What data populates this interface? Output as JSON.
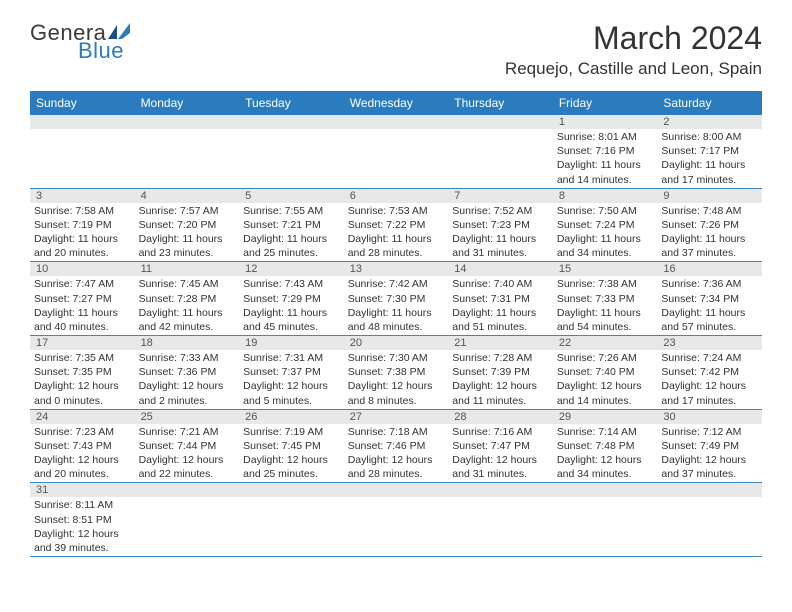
{
  "brand": {
    "part1": "Genera",
    "part2": "Blue"
  },
  "title": "March 2024",
  "location": "Requejo, Castille and Leon, Spain",
  "weekdays": [
    "Sunday",
    "Monday",
    "Tuesday",
    "Wednesday",
    "Thursday",
    "Friday",
    "Saturday"
  ],
  "colors": {
    "header_bg": "#2b7bbf",
    "row_divider": "#3a88c7",
    "daynum_bg": "#e8e8e8",
    "text": "#333333"
  },
  "weeks": [
    [
      null,
      null,
      null,
      null,
      null,
      {
        "n": "1",
        "sr": "Sunrise: 8:01 AM",
        "ss": "Sunset: 7:16 PM",
        "d1": "Daylight: 11 hours",
        "d2": "and 14 minutes."
      },
      {
        "n": "2",
        "sr": "Sunrise: 8:00 AM",
        "ss": "Sunset: 7:17 PM",
        "d1": "Daylight: 11 hours",
        "d2": "and 17 minutes."
      }
    ],
    [
      {
        "n": "3",
        "sr": "Sunrise: 7:58 AM",
        "ss": "Sunset: 7:19 PM",
        "d1": "Daylight: 11 hours",
        "d2": "and 20 minutes."
      },
      {
        "n": "4",
        "sr": "Sunrise: 7:57 AM",
        "ss": "Sunset: 7:20 PM",
        "d1": "Daylight: 11 hours",
        "d2": "and 23 minutes."
      },
      {
        "n": "5",
        "sr": "Sunrise: 7:55 AM",
        "ss": "Sunset: 7:21 PM",
        "d1": "Daylight: 11 hours",
        "d2": "and 25 minutes."
      },
      {
        "n": "6",
        "sr": "Sunrise: 7:53 AM",
        "ss": "Sunset: 7:22 PM",
        "d1": "Daylight: 11 hours",
        "d2": "and 28 minutes."
      },
      {
        "n": "7",
        "sr": "Sunrise: 7:52 AM",
        "ss": "Sunset: 7:23 PM",
        "d1": "Daylight: 11 hours",
        "d2": "and 31 minutes."
      },
      {
        "n": "8",
        "sr": "Sunrise: 7:50 AM",
        "ss": "Sunset: 7:24 PM",
        "d1": "Daylight: 11 hours",
        "d2": "and 34 minutes."
      },
      {
        "n": "9",
        "sr": "Sunrise: 7:48 AM",
        "ss": "Sunset: 7:26 PM",
        "d1": "Daylight: 11 hours",
        "d2": "and 37 minutes."
      }
    ],
    [
      {
        "n": "10",
        "sr": "Sunrise: 7:47 AM",
        "ss": "Sunset: 7:27 PM",
        "d1": "Daylight: 11 hours",
        "d2": "and 40 minutes."
      },
      {
        "n": "11",
        "sr": "Sunrise: 7:45 AM",
        "ss": "Sunset: 7:28 PM",
        "d1": "Daylight: 11 hours",
        "d2": "and 42 minutes."
      },
      {
        "n": "12",
        "sr": "Sunrise: 7:43 AM",
        "ss": "Sunset: 7:29 PM",
        "d1": "Daylight: 11 hours",
        "d2": "and 45 minutes."
      },
      {
        "n": "13",
        "sr": "Sunrise: 7:42 AM",
        "ss": "Sunset: 7:30 PM",
        "d1": "Daylight: 11 hours",
        "d2": "and 48 minutes."
      },
      {
        "n": "14",
        "sr": "Sunrise: 7:40 AM",
        "ss": "Sunset: 7:31 PM",
        "d1": "Daylight: 11 hours",
        "d2": "and 51 minutes."
      },
      {
        "n": "15",
        "sr": "Sunrise: 7:38 AM",
        "ss": "Sunset: 7:33 PM",
        "d1": "Daylight: 11 hours",
        "d2": "and 54 minutes."
      },
      {
        "n": "16",
        "sr": "Sunrise: 7:36 AM",
        "ss": "Sunset: 7:34 PM",
        "d1": "Daylight: 11 hours",
        "d2": "and 57 minutes."
      }
    ],
    [
      {
        "n": "17",
        "sr": "Sunrise: 7:35 AM",
        "ss": "Sunset: 7:35 PM",
        "d1": "Daylight: 12 hours",
        "d2": "and 0 minutes."
      },
      {
        "n": "18",
        "sr": "Sunrise: 7:33 AM",
        "ss": "Sunset: 7:36 PM",
        "d1": "Daylight: 12 hours",
        "d2": "and 2 minutes."
      },
      {
        "n": "19",
        "sr": "Sunrise: 7:31 AM",
        "ss": "Sunset: 7:37 PM",
        "d1": "Daylight: 12 hours",
        "d2": "and 5 minutes."
      },
      {
        "n": "20",
        "sr": "Sunrise: 7:30 AM",
        "ss": "Sunset: 7:38 PM",
        "d1": "Daylight: 12 hours",
        "d2": "and 8 minutes."
      },
      {
        "n": "21",
        "sr": "Sunrise: 7:28 AM",
        "ss": "Sunset: 7:39 PM",
        "d1": "Daylight: 12 hours",
        "d2": "and 11 minutes."
      },
      {
        "n": "22",
        "sr": "Sunrise: 7:26 AM",
        "ss": "Sunset: 7:40 PM",
        "d1": "Daylight: 12 hours",
        "d2": "and 14 minutes."
      },
      {
        "n": "23",
        "sr": "Sunrise: 7:24 AM",
        "ss": "Sunset: 7:42 PM",
        "d1": "Daylight: 12 hours",
        "d2": "and 17 minutes."
      }
    ],
    [
      {
        "n": "24",
        "sr": "Sunrise: 7:23 AM",
        "ss": "Sunset: 7:43 PM",
        "d1": "Daylight: 12 hours",
        "d2": "and 20 minutes."
      },
      {
        "n": "25",
        "sr": "Sunrise: 7:21 AM",
        "ss": "Sunset: 7:44 PM",
        "d1": "Daylight: 12 hours",
        "d2": "and 22 minutes."
      },
      {
        "n": "26",
        "sr": "Sunrise: 7:19 AM",
        "ss": "Sunset: 7:45 PM",
        "d1": "Daylight: 12 hours",
        "d2": "and 25 minutes."
      },
      {
        "n": "27",
        "sr": "Sunrise: 7:18 AM",
        "ss": "Sunset: 7:46 PM",
        "d1": "Daylight: 12 hours",
        "d2": "and 28 minutes."
      },
      {
        "n": "28",
        "sr": "Sunrise: 7:16 AM",
        "ss": "Sunset: 7:47 PM",
        "d1": "Daylight: 12 hours",
        "d2": "and 31 minutes."
      },
      {
        "n": "29",
        "sr": "Sunrise: 7:14 AM",
        "ss": "Sunset: 7:48 PM",
        "d1": "Daylight: 12 hours",
        "d2": "and 34 minutes."
      },
      {
        "n": "30",
        "sr": "Sunrise: 7:12 AM",
        "ss": "Sunset: 7:49 PM",
        "d1": "Daylight: 12 hours",
        "d2": "and 37 minutes."
      }
    ],
    [
      {
        "n": "31",
        "sr": "Sunrise: 8:11 AM",
        "ss": "Sunset: 8:51 PM",
        "d1": "Daylight: 12 hours",
        "d2": "and 39 minutes."
      },
      null,
      null,
      null,
      null,
      null,
      null
    ]
  ]
}
